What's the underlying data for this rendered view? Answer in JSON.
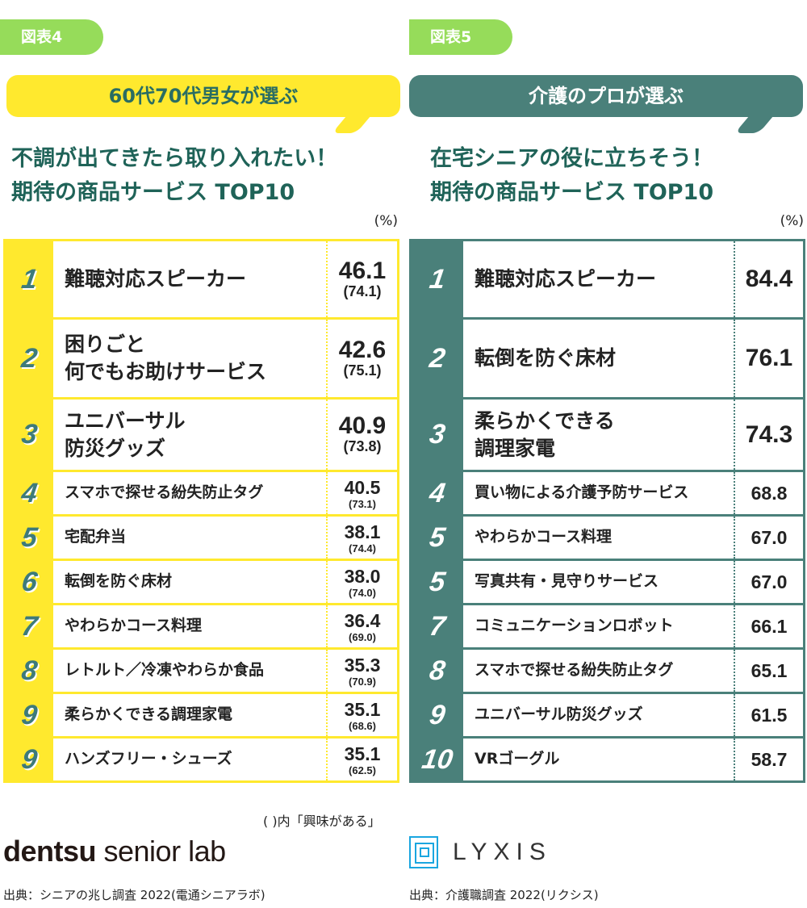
{
  "left": {
    "badge": "図表4",
    "bubble": "60代70代男女が選ぶ",
    "heading": [
      "不調が出てきたら取り入れたい！",
      "期待の商品サービス TOP10"
    ],
    "unit": "(%)",
    "rows": [
      {
        "rank": "1",
        "name": "難聴対応スピーカー",
        "value": "46.1",
        "sub": "(74.1)"
      },
      {
        "rank": "2",
        "name": "困りごと\n何でもお助けサービス",
        "value": "42.6",
        "sub": "(75.1)"
      },
      {
        "rank": "3",
        "name": "ユニバーサル\n防災グッズ",
        "value": "40.9",
        "sub": "(73.8)"
      },
      {
        "rank": "4",
        "name": "スマホで探せる紛失防止タグ",
        "value": "40.5",
        "sub": "(73.1)"
      },
      {
        "rank": "5",
        "name": "宅配弁当",
        "value": "38.1",
        "sub": "(74.4)"
      },
      {
        "rank": "6",
        "name": "転倒を防ぐ床材",
        "value": "38.0",
        "sub": "(74.0)"
      },
      {
        "rank": "7",
        "name": "やわらかコース料理",
        "value": "36.4",
        "sub": "(69.0)"
      },
      {
        "rank": "8",
        "name": "レトルト／冷凍やわらか食品",
        "value": "35.3",
        "sub": "(70.9)"
      },
      {
        "rank": "9",
        "name": "柔らかくできる調理家電",
        "value": "35.1",
        "sub": "(68.6)"
      },
      {
        "rank": "9",
        "name": "ハンズフリー・シューズ",
        "value": "35.1",
        "sub": "(62.5)"
      }
    ],
    "note": "( )内「興味がある」",
    "logo": "dentsu senior lab",
    "source": "出典：シニアの兆し調査 2022(電通シニアラボ)"
  },
  "right": {
    "badge": "図表5",
    "bubble": "介護のプロが選ぶ",
    "heading": [
      "在宅シニアの役に立ちそう！",
      "期待の商品サービス TOP10"
    ],
    "unit": "(%)",
    "rows": [
      {
        "rank": "1",
        "name": "難聴対応スピーカー",
        "value": "84.4"
      },
      {
        "rank": "2",
        "name": "転倒を防ぐ床材",
        "value": "76.1"
      },
      {
        "rank": "3",
        "name": "柔らかくできる\n調理家電",
        "value": "74.3"
      },
      {
        "rank": "4",
        "name": "買い物による介護予防サービス",
        "value": "68.8"
      },
      {
        "rank": "5",
        "name": "やわらかコース料理",
        "value": "67.0"
      },
      {
        "rank": "5",
        "name": "写真共有・見守りサービス",
        "value": "67.0"
      },
      {
        "rank": "7",
        "name": "コミュニケーションロボット",
        "value": "66.1"
      },
      {
        "rank": "8",
        "name": "スマホで探せる紛失防止タグ",
        "value": "65.1"
      },
      {
        "rank": "9",
        "name": "ユニバーサル防災グッズ",
        "value": "61.5"
      },
      {
        "rank": "10",
        "name": "VRゴーグル",
        "value": "58.7"
      }
    ],
    "logo": "LYXIS",
    "source": "出典：介護職調査 2022(リクシス)"
  },
  "colors": {
    "yellow": "#ffe92e",
    "teal": "#4a807a",
    "green_badge": "#96dc5a",
    "heading": "#1f6358"
  }
}
